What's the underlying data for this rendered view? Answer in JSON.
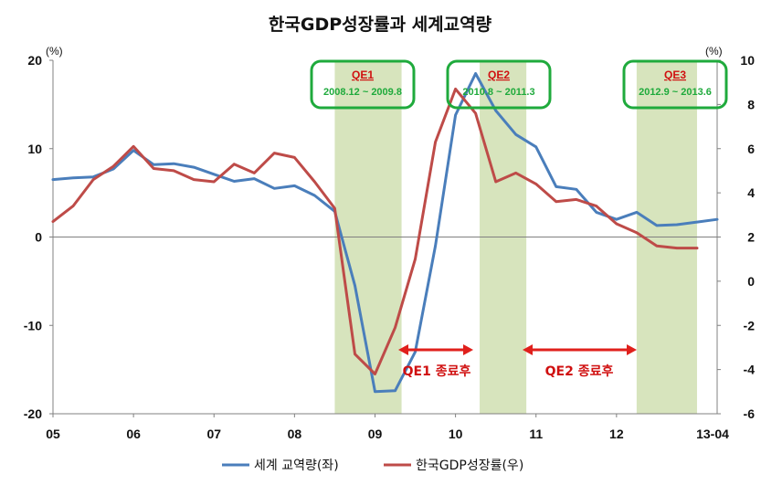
{
  "chart_data": {
    "type": "line",
    "title": "한국GDP성장률과 세계교역량",
    "left_unit": "(%)",
    "right_unit": "(%)",
    "left_ylim": [
      -20,
      20
    ],
    "right_ylim": [
      -6,
      10
    ],
    "left_ticks": [
      "20",
      "10",
      "0",
      "-10",
      "-20"
    ],
    "right_ticks": [
      "10",
      "8",
      "6",
      "4",
      "2",
      "0",
      "-2",
      "-4",
      "-6"
    ],
    "x_ticks": [
      "05",
      "06",
      "07",
      "08",
      "09",
      "10",
      "11",
      "12",
      "13-04"
    ],
    "grid": false,
    "legend_position": "bottom",
    "colors": {
      "world": "#4a7ebb",
      "korea": "#be4b48",
      "band": "#d7e4bd",
      "box": "#1faa3c",
      "qe_text": "#d01010"
    },
    "series": [
      {
        "name": "세계 교역량(좌)",
        "axis": "left",
        "x": [
          2005.0,
          2005.25,
          2005.5,
          2005.75,
          2006.0,
          2006.25,
          2006.5,
          2006.75,
          2007.0,
          2007.25,
          2007.5,
          2007.75,
          2008.0,
          2008.25,
          2008.5,
          2008.75,
          2009.0,
          2009.25,
          2009.5,
          2009.75,
          2010.0,
          2010.25,
          2010.5,
          2010.75,
          2011.0,
          2011.25,
          2011.5,
          2011.75,
          2012.0,
          2012.25,
          2012.5,
          2012.75,
          2013.0,
          2013.25
        ],
        "values": [
          6.5,
          6.7,
          6.8,
          7.7,
          9.8,
          8.2,
          8.3,
          7.9,
          7.1,
          6.3,
          6.6,
          5.5,
          5.8,
          4.7,
          2.9,
          -5.5,
          -17.5,
          -17.4,
          -13.0,
          -1.0,
          13.8,
          18.5,
          14.3,
          11.6,
          10.2,
          5.7,
          5.4,
          2.8,
          2.0,
          2.8,
          1.3,
          1.4,
          1.7,
          2.0
        ]
      },
      {
        "name": "한국GDP성장률(우)",
        "axis": "right",
        "x": [
          2005.0,
          2005.25,
          2005.5,
          2005.75,
          2006.0,
          2006.25,
          2006.5,
          2006.75,
          2007.0,
          2007.25,
          2007.5,
          2007.75,
          2008.0,
          2008.25,
          2008.5,
          2008.75,
          2009.0,
          2009.25,
          2009.5,
          2009.75,
          2010.0,
          2010.25,
          2010.5,
          2010.75,
          2011.0,
          2011.25,
          2011.5,
          2011.75,
          2012.0,
          2012.25,
          2012.5,
          2012.75,
          2013.0
        ],
        "values": [
          2.7,
          3.4,
          4.6,
          5.2,
          6.1,
          5.1,
          5.0,
          4.6,
          4.5,
          5.3,
          4.9,
          5.8,
          5.6,
          4.5,
          3.3,
          -3.3,
          -4.2,
          -2.1,
          1.0,
          6.3,
          8.7,
          7.6,
          4.5,
          4.9,
          4.4,
          3.6,
          3.7,
          3.4,
          2.6,
          2.2,
          1.6,
          1.5,
          1.5
        ]
      }
    ],
    "bands": [
      {
        "name": "QE1",
        "period": "2008.12 ~ 2009.8",
        "start": 2008.5,
        "end": 2009.33
      },
      {
        "name": "QE2",
        "period": "2010.8 ~ 2011.3",
        "start": 2010.3,
        "end": 2010.88
      },
      {
        "name": "QE3",
        "period": "2012.9 ~ 2013.6",
        "start": 2012.25,
        "end": 2013.0
      }
    ],
    "annotations": [
      {
        "text": "QE1 종료후",
        "from": 2009.33,
        "to": 2010.3
      },
      {
        "text": "QE2 종료후",
        "from": 2010.9,
        "to": 2012.25
      }
    ]
  }
}
